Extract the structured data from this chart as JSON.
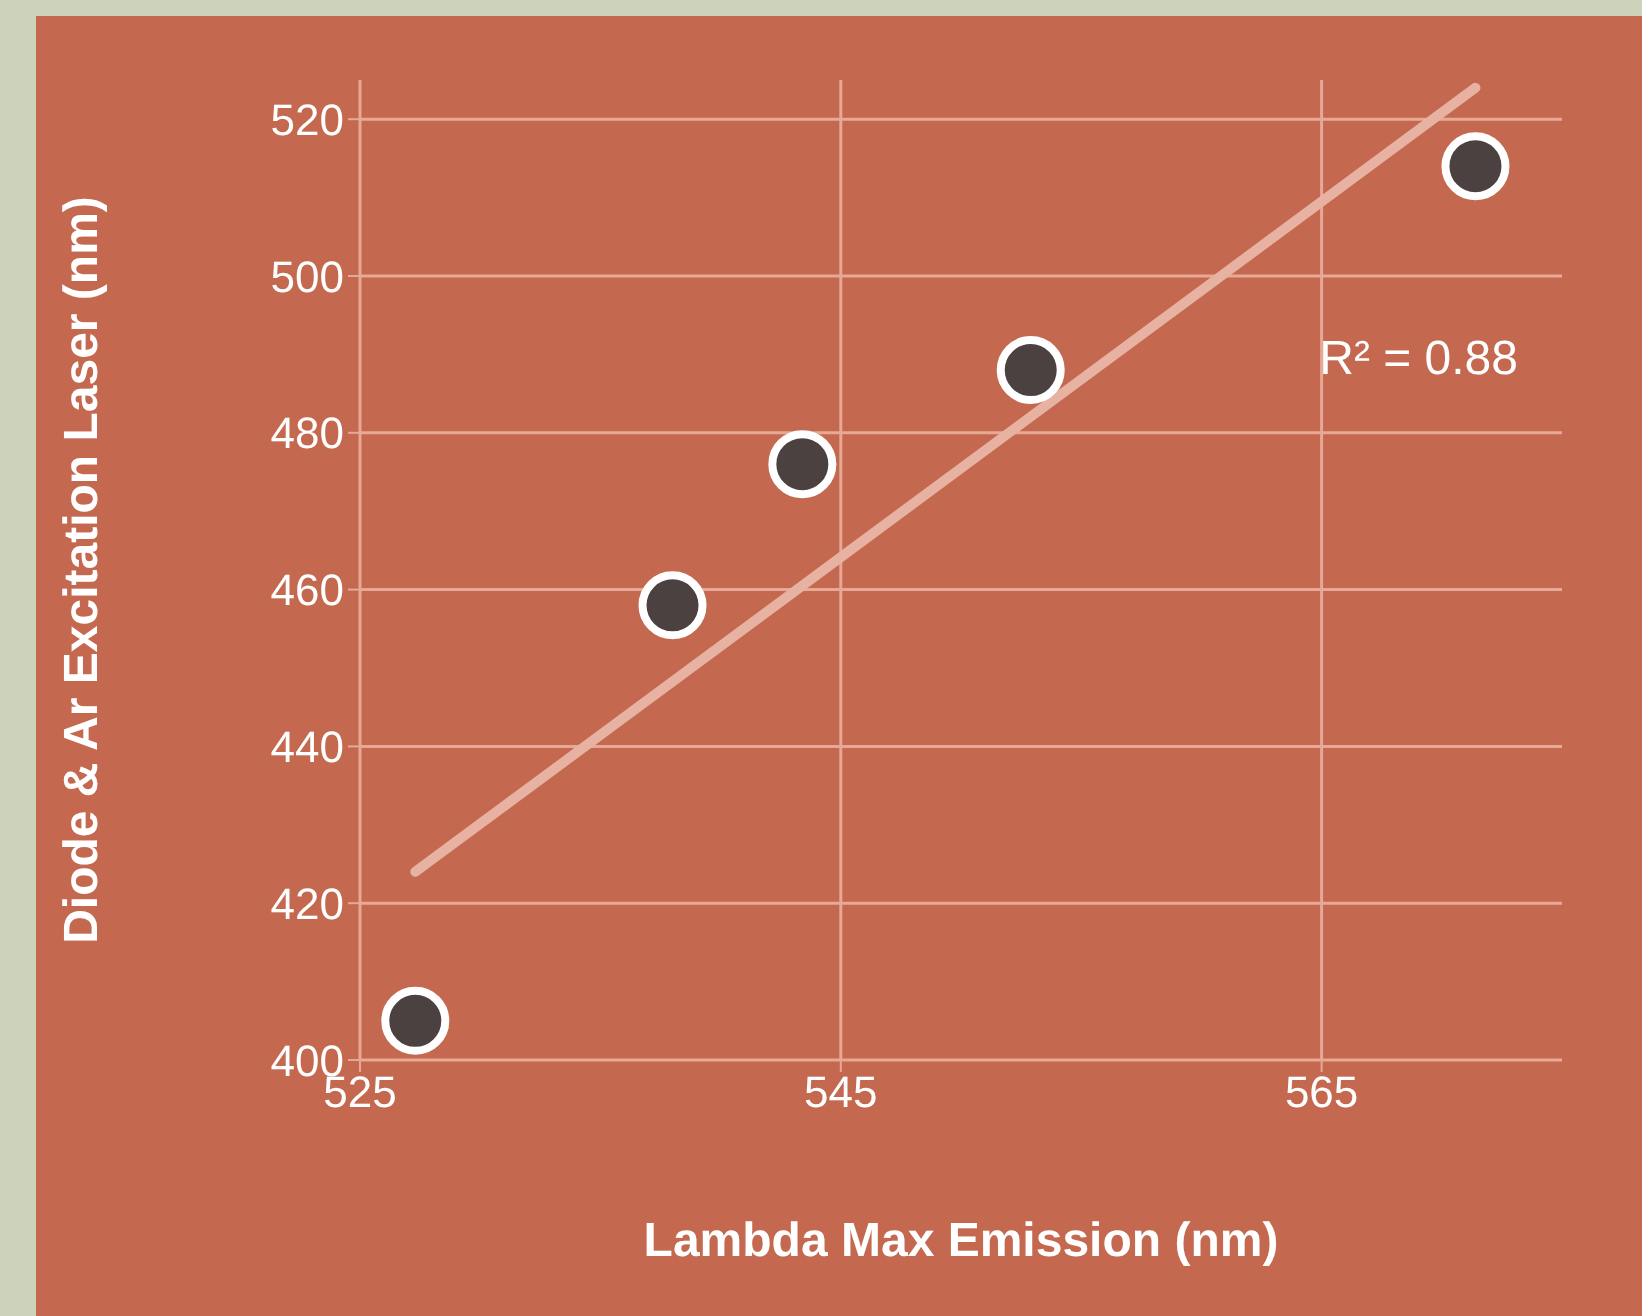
{
  "chart_data": {
    "type": "scatter",
    "xlabel": "Lambda Max Emission (nm)",
    "ylabel": "Diode & Ar Excitation Laser (nm)",
    "xlim": [
      525,
      575
    ],
    "xticks": [
      525,
      545,
      565
    ],
    "ylim": [
      400,
      525
    ],
    "yticks": [
      400,
      420,
      440,
      460,
      480,
      500,
      520
    ],
    "grid": true,
    "marker": "circle",
    "series": [
      {
        "color": "#4a4140",
        "x": [
          527.3,
          538.0,
          543.4,
          552.9,
          571.4
        ],
        "values": [
          405,
          458,
          476,
          488,
          514
        ]
      },
      {
        "type": "line",
        "color": "#e8b2a2",
        "marker": "none",
        "line_style": "solid",
        "x": [
          527.3,
          571.4
        ],
        "values": [
          424,
          524
        ]
      }
    ],
    "annotations": [
      "R² = 0.88"
    ]
  }
}
